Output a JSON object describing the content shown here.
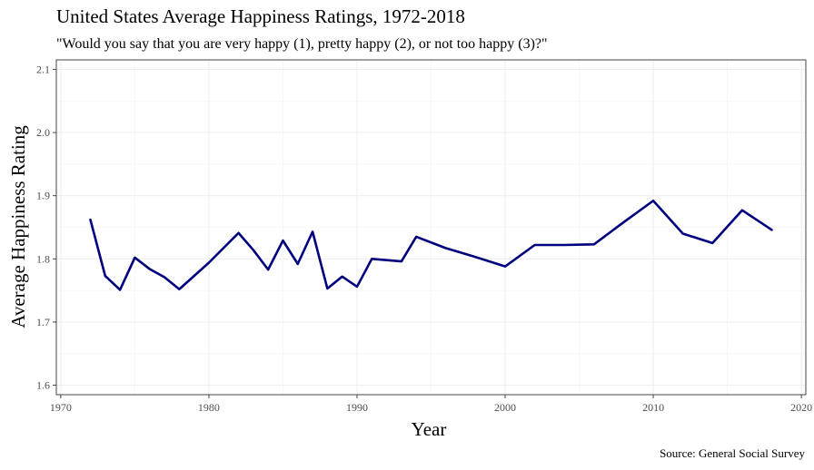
{
  "chart_data": {
    "type": "line",
    "title": "United States Average Happiness Ratings, 1972-2018",
    "subtitle": "\"Would you say that you are very happy (1), pretty happy (2), or not too happy (3)?\"",
    "caption": "Source: General Social Survey",
    "xlabel": "Year",
    "ylabel": "Average Happiness Rating",
    "xlim": [
      1969.7,
      2020.3
    ],
    "ylim": [
      1.585,
      2.115
    ],
    "x_ticks": [
      1970,
      1980,
      1990,
      2000,
      2010,
      2020
    ],
    "y_ticks": [
      1.6,
      1.7,
      1.8,
      1.9,
      2.0,
      2.1
    ],
    "x_tick_labels": [
      "1970",
      "1980",
      "1990",
      "2000",
      "2010",
      "2020"
    ],
    "y_tick_labels": [
      "1.6",
      "1.7",
      "1.8",
      "1.9",
      "2.0",
      "2.1"
    ],
    "grid": true,
    "line_color": "#00007f",
    "x": [
      1972,
      1973,
      1974,
      1975,
      1976,
      1977,
      1978,
      1980,
      1982,
      1983,
      1984,
      1985,
      1986,
      1987,
      1988,
      1989,
      1990,
      1991,
      1993,
      1994,
      1996,
      1998,
      2000,
      2002,
      2004,
      2006,
      2008,
      2010,
      2012,
      2014,
      2016,
      2018
    ],
    "series": [
      {
        "values": [
          1.862,
          1.773,
          1.751,
          1.802,
          1.784,
          1.771,
          1.752,
          1.794,
          1.841,
          1.814,
          1.783,
          1.829,
          1.792,
          1.843,
          1.753,
          1.772,
          1.756,
          1.8,
          1.796,
          1.835,
          1.817,
          1.803,
          1.788,
          1.822,
          1.822,
          1.823,
          1.858,
          1.892,
          1.84,
          1.825,
          1.877,
          1.846
        ]
      }
    ]
  }
}
